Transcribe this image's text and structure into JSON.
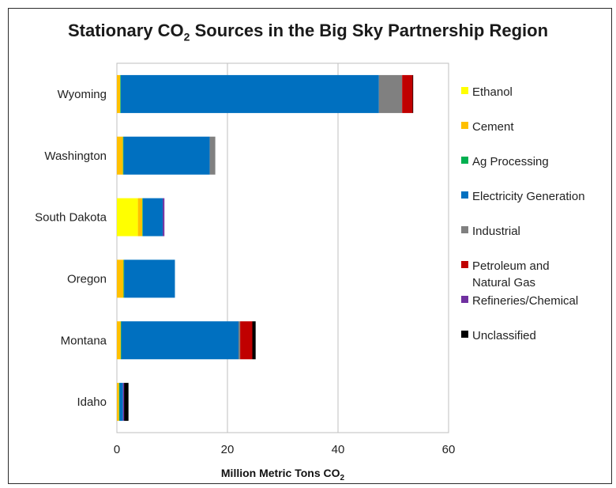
{
  "chart_data": {
    "type": "bar",
    "orientation": "horizontal",
    "stacked": true,
    "title": "Stationary CO",
    "title_subscript": "2",
    "title_suffix": " Sources in the Big Sky Partnership Region",
    "xlabel": "Million Metric Tons CO",
    "xlabel_subscript": "2",
    "xlim": [
      0,
      60
    ],
    "xticks": [
      "0",
      "20",
      "40",
      "60"
    ],
    "grid": "vertical",
    "legend_position": "right",
    "categories": [
      "Wyoming",
      "Washington",
      "South Dakota",
      "Oregon",
      "Montana",
      "Idaho"
    ],
    "series": [
      {
        "name": "Ethanol",
        "color": "#ffff00",
        "values": [
          0,
          0,
          3.8,
          0,
          0,
          0
        ]
      },
      {
        "name": "Cement",
        "color": "#ffc000",
        "values": [
          0.6,
          1.1,
          0.8,
          1.2,
          0.7,
          0.4
        ]
      },
      {
        "name": "Ag Processing",
        "color": "#00b050",
        "values": [
          0.1,
          0.1,
          0.1,
          0.1,
          0.1,
          0.1
        ]
      },
      {
        "name": "Electricity Generation",
        "color": "#0070c0",
        "values": [
          46.7,
          15.6,
          3.6,
          9.2,
          21.2,
          0.6
        ]
      },
      {
        "name": "Industrial",
        "color": "#808080",
        "values": [
          4.2,
          1.0,
          0,
          0,
          0.3,
          0
        ]
      },
      {
        "name": "Petroleum and Natural Gas",
        "legend_lines": [
          "Petroleum and",
          "Natural Gas"
        ],
        "color": "#c00000",
        "values": [
          1.9,
          0,
          0,
          0,
          2.2,
          0
        ]
      },
      {
        "name": "Refineries/Chemical",
        "color": "#7030a0",
        "values": [
          0,
          0,
          0.3,
          0,
          0,
          0.2
        ]
      },
      {
        "name": "Unclassified",
        "color": "#000000",
        "values": [
          0.1,
          0,
          0,
          0,
          0.6,
          0.8
        ]
      }
    ]
  }
}
